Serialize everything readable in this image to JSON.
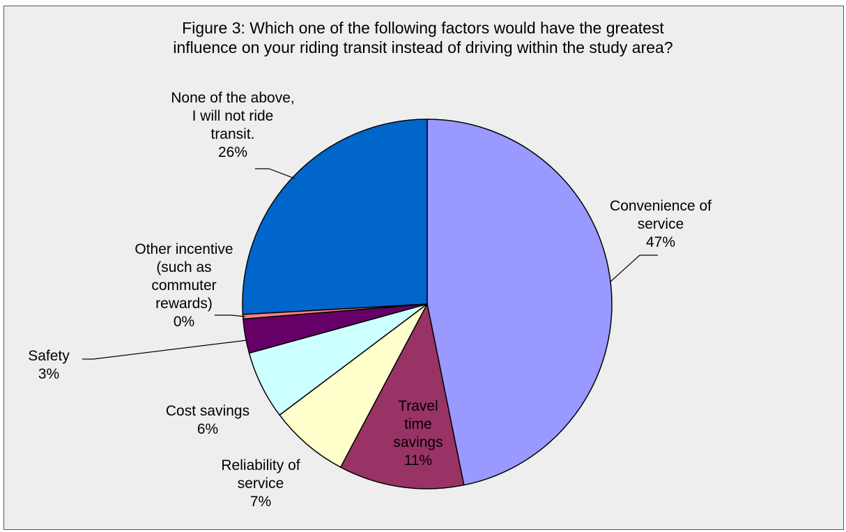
{
  "chart_data": {
    "type": "pie",
    "title": "Figure 3: Which one of the following factors would have the greatest influence on your riding transit instead of driving within the study area?",
    "title_lines": [
      "Figure 3: Which one of the following factors would have the greatest",
      "influence on your riding transit instead of driving within the study area?"
    ],
    "slices": [
      {
        "name": "Convenience of service",
        "label_lines": [
          "Convenience of",
          "service",
          "47%"
        ],
        "percent": 47,
        "color": "#9999ff"
      },
      {
        "name": "Travel time savings",
        "label_lines": [
          "Travel",
          "time",
          "savings",
          "11%"
        ],
        "percent": 11,
        "color": "#993366"
      },
      {
        "name": "Reliability of service",
        "label_lines": [
          "Reliability of",
          "service",
          "7%"
        ],
        "percent": 7,
        "color": "#ffffcc"
      },
      {
        "name": "Cost savings",
        "label_lines": [
          "Cost savings",
          "6%"
        ],
        "percent": 6,
        "color": "#ccffff"
      },
      {
        "name": "Safety",
        "label_lines": [
          "Safety",
          "3%"
        ],
        "percent": 3,
        "color": "#660066"
      },
      {
        "name": "Other incentive (such as commuter rewards)",
        "label_lines": [
          "Other incentive",
          "(such as",
          "commuter",
          "rewards)",
          "0%"
        ],
        "percent": 0.4,
        "color": "#ff8080"
      },
      {
        "name": "None of the above, I will not ride transit.",
        "label_lines": [
          "None of the above,",
          "I will not ride",
          "transit.",
          "26%"
        ],
        "percent": 26,
        "color": "#0066cc"
      }
    ],
    "start_angle_deg": 0,
    "direction": "clockwise",
    "legend": "none",
    "data_labels": "outside with leader lines"
  }
}
